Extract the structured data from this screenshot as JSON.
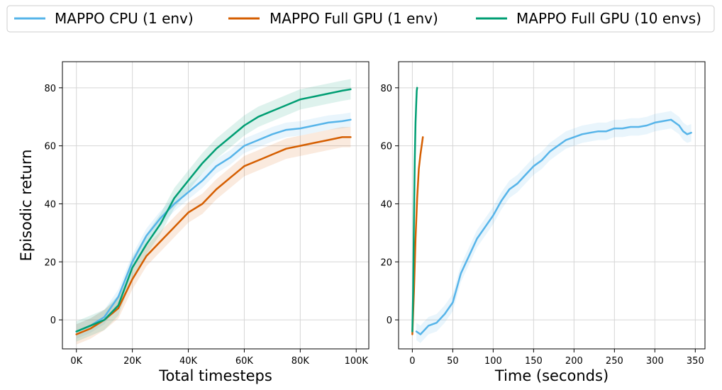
{
  "legend": {
    "entries": [
      {
        "label": "MAPPO CPU (1 env)",
        "color": "#56b4e9"
      },
      {
        "label": "MAPPO Full GPU (1 env)",
        "color": "#d55e00"
      },
      {
        "label": "MAPPO Full GPU (10 envs)",
        "color": "#009e73"
      }
    ]
  },
  "chart_data": [
    {
      "type": "line",
      "title": "",
      "xlabel": "Total timesteps",
      "ylabel": "Episodic return",
      "xlim": [
        -5000,
        104500
      ],
      "ylim": [
        -10,
        89
      ],
      "xticks": [
        0,
        20000,
        40000,
        60000,
        80000,
        100000
      ],
      "xtick_labels": [
        "0K",
        "20K",
        "40K",
        "60K",
        "80K",
        "100K"
      ],
      "yticks": [
        0,
        20,
        40,
        60,
        80
      ],
      "ytick_labels": [
        "0",
        "20",
        "40",
        "60",
        "80"
      ],
      "grid": true,
      "series": [
        {
          "name": "MAPPO CPU (1 env)",
          "color": "#56b4e9",
          "band": 2.5,
          "x": [
            0,
            5000,
            10000,
            15000,
            20000,
            25000,
            30000,
            35000,
            40000,
            45000,
            50000,
            55000,
            60000,
            65000,
            70000,
            75000,
            80000,
            85000,
            90000,
            95000,
            98000
          ],
          "y": [
            -4,
            -2,
            1,
            8,
            20,
            29,
            35,
            40,
            44,
            48,
            53,
            56,
            60,
            62,
            64,
            65.5,
            66,
            67,
            68,
            68.5,
            69
          ]
        },
        {
          "name": "MAPPO Full GPU (1 env)",
          "color": "#d55e00",
          "band": 3.5,
          "x": [
            0,
            5000,
            10000,
            15000,
            20000,
            25000,
            30000,
            35000,
            40000,
            45000,
            50000,
            55000,
            60000,
            65000,
            70000,
            75000,
            80000,
            85000,
            90000,
            95000,
            98000
          ],
          "y": [
            -5,
            -3,
            0,
            4,
            14,
            22,
            27,
            32,
            37,
            40,
            45,
            49,
            53,
            55,
            57,
            59,
            60,
            61,
            62,
            63,
            63
          ]
        },
        {
          "name": "MAPPO Full GPU (10 envs)",
          "color": "#009e73",
          "band": 3.5,
          "x": [
            0,
            5000,
            10000,
            15000,
            20000,
            25000,
            30000,
            35000,
            40000,
            45000,
            50000,
            55000,
            60000,
            65000,
            70000,
            75000,
            80000,
            85000,
            90000,
            95000,
            98000
          ],
          "y": [
            -4,
            -2,
            0,
            5,
            18,
            26,
            33,
            42,
            48,
            54,
            59,
            63,
            67,
            70,
            72,
            74,
            76,
            77,
            78,
            79,
            79.5
          ]
        }
      ]
    },
    {
      "type": "line",
      "title": "",
      "xlabel": "Time (seconds)",
      "ylabel": "",
      "xlim": [
        -17,
        362
      ],
      "ylim": [
        -10,
        89
      ],
      "xticks": [
        0,
        50,
        100,
        150,
        200,
        250,
        300,
        350
      ],
      "xtick_labels": [
        "0",
        "50",
        "100",
        "150",
        "200",
        "250",
        "300",
        "350"
      ],
      "yticks": [
        0,
        20,
        40,
        60,
        80
      ],
      "ytick_labels": [
        "0",
        "20",
        "40",
        "60",
        "80"
      ],
      "grid": true,
      "series": [
        {
          "name": "MAPPO CPU (1 env)",
          "color": "#56b4e9",
          "band": 3.0,
          "x": [
            5,
            10,
            20,
            30,
            40,
            50,
            55,
            60,
            70,
            80,
            90,
            100,
            110,
            120,
            130,
            140,
            150,
            160,
            170,
            180,
            190,
            200,
            210,
            220,
            230,
            240,
            250,
            260,
            270,
            280,
            290,
            300,
            310,
            320,
            325,
            330,
            335,
            340,
            345
          ],
          "y": [
            -4,
            -5,
            -2,
            -1,
            2,
            6,
            11,
            16,
            22,
            28,
            32,
            36,
            41,
            45,
            47,
            50,
            53,
            55,
            58,
            60,
            62,
            63,
            64,
            64.5,
            65,
            65,
            66,
            66,
            66.5,
            66.5,
            67,
            68,
            68.5,
            69,
            68,
            67,
            65,
            64,
            64.5
          ]
        },
        {
          "name": "MAPPO Full GPU (1 env)",
          "color": "#d55e00",
          "band": 1.0,
          "x": [
            0,
            2,
            4,
            6,
            8,
            10,
            12,
            13
          ],
          "y": [
            -5,
            10,
            28,
            42,
            52,
            57,
            61,
            63
          ]
        },
        {
          "name": "MAPPO Full GPU (10 envs)",
          "color": "#009e73",
          "band": 2.0,
          "x": [
            0,
            1,
            2,
            3,
            4,
            5,
            5.5,
            6
          ],
          "y": [
            -4,
            10,
            35,
            55,
            68,
            76,
            79,
            80
          ]
        }
      ]
    }
  ]
}
